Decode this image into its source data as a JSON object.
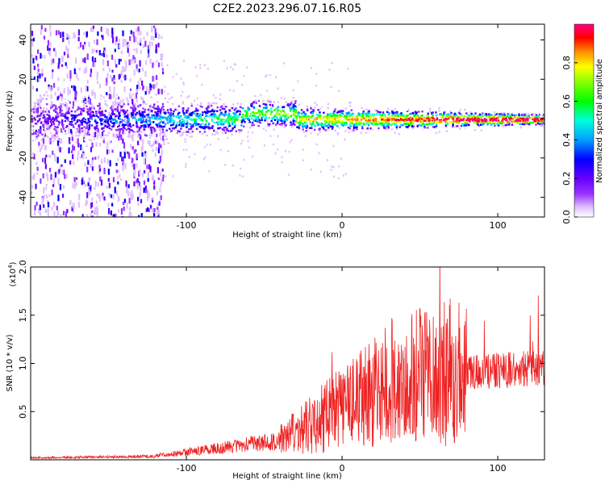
{
  "title": "C2E2.2023.296.07.16.R05",
  "chart_data": [
    {
      "type": "heatmap",
      "xlabel": "Height of straight line (km)",
      "ylabel": "Frequency (Hz)",
      "xlim": [
        -200,
        130
      ],
      "ylim": [
        -50,
        48
      ],
      "xticks": [
        -100,
        0,
        100
      ],
      "yticks": [
        -40,
        -20,
        0,
        20,
        40
      ],
      "colorbar": {
        "label": "Normalized spectral amplitude",
        "range": [
          0,
          1
        ],
        "ticks": [
          "0.0",
          "0.2",
          "0.4",
          "0.6",
          "0.8"
        ],
        "colors": [
          "#ffffff",
          "#e0c0ff",
          "#9933ff",
          "#6600ff",
          "#0000ff",
          "#00a0ff",
          "#00ffdd",
          "#00ff00",
          "#88ff00",
          "#ffff00",
          "#ff8800",
          "#ff0000",
          "#ff0066",
          "#ff0080"
        ]
      }
    },
    {
      "type": "line",
      "xlabel": "Height of straight line (km)",
      "ylabel": "SNR (10 * v/v)",
      "ymultiplier": "(x10",
      "ymultiplier_exp": "4",
      "ymultiplier_close": ")",
      "xlim": [
        -200,
        130
      ],
      "ylim": [
        0,
        2.0
      ],
      "xticks": [
        -100,
        0,
        100
      ],
      "yticks": [
        "0.5",
        "1.0",
        "1.5",
        "2.0"
      ],
      "color": "#ee2222"
    }
  ]
}
